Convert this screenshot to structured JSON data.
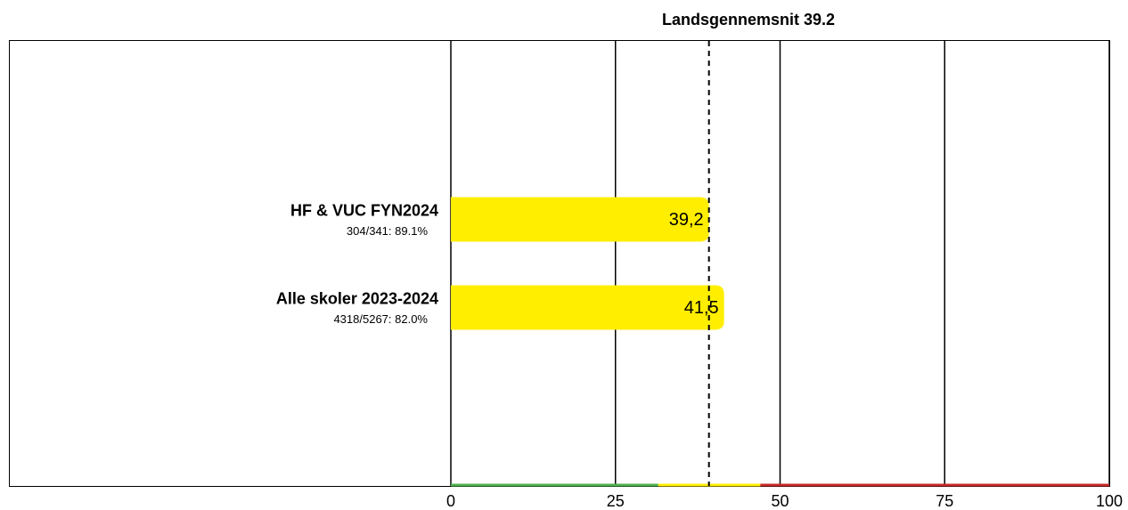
{
  "chart_data": {
    "type": "bar",
    "orientation": "horizontal",
    "reference": {
      "value": 39.2,
      "label": "Landsgennemsnit 39.2"
    },
    "categories": [
      "HF & VUC FYN2024",
      "Alle skoler 2023-2024"
    ],
    "sublabels": [
      "304/341: 89.1%",
      "4318/5267: 82.0%"
    ],
    "values": [
      39.2,
      41.5
    ],
    "value_labels": [
      "39,2",
      "41,5"
    ],
    "color": "#ffee00",
    "xlim": [
      0,
      100
    ],
    "xticks": [
      0,
      25,
      50,
      75,
      100
    ],
    "grid": true,
    "bands": [
      {
        "from": 0,
        "to": 31.5,
        "color": "#4caf50"
      },
      {
        "from": 31.5,
        "to": 47,
        "color": "#ffee00"
      },
      {
        "from": 47,
        "to": 100,
        "color": "#c62828"
      }
    ]
  }
}
